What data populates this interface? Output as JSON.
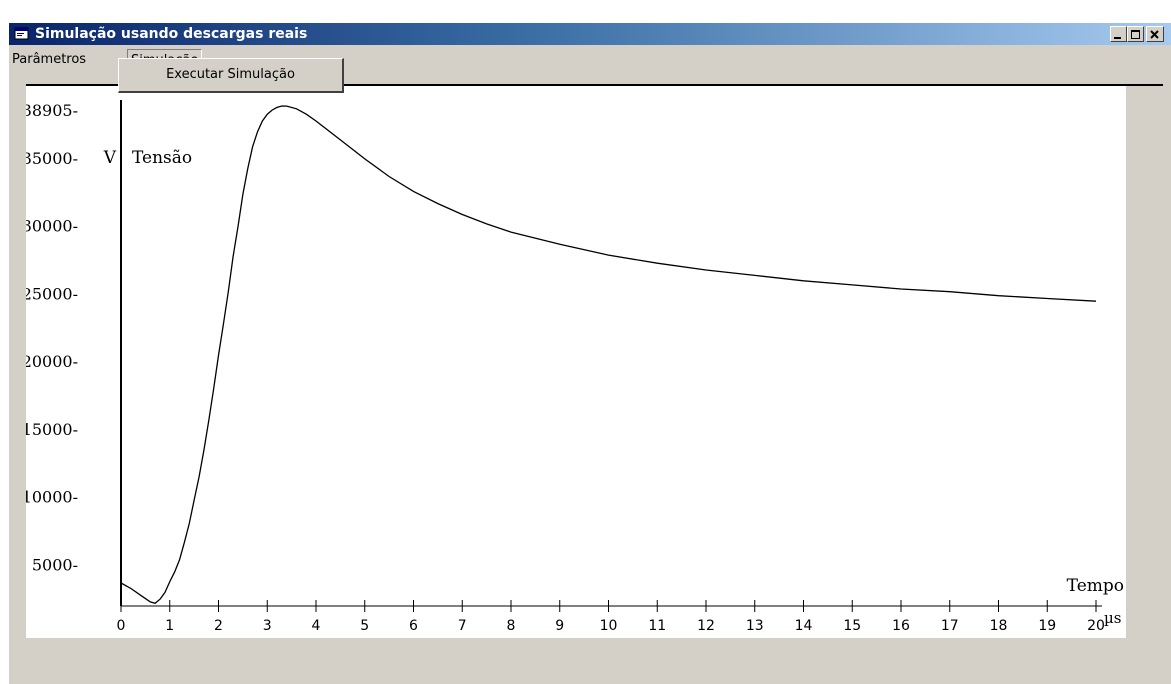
{
  "window": {
    "title": "Simulação usando descargas reais",
    "icon": "app-window-icon",
    "controls": [
      "minimize-icon",
      "maximize-icon",
      "close-icon"
    ]
  },
  "menu": {
    "items": [
      "Parâmetros",
      "Simulação"
    ],
    "open_menu": "Simulação",
    "open_menu_items": [
      "Executar Simulação"
    ]
  },
  "chart_data": {
    "type": "line",
    "ylabel": "Tensão",
    "y_unit": "V",
    "y_top_label": "38905-",
    "y_tick_labels": [
      "35000-",
      "30000-",
      "25000-",
      "20000-",
      "15000-",
      "10000-",
      "5000-"
    ],
    "y_tick_values": [
      35000,
      30000,
      25000,
      20000,
      15000,
      10000,
      5000
    ],
    "ylim": [
      2000,
      38905
    ],
    "xlabel": "Tempo",
    "x_unit": "µs",
    "x_ticks": [
      0,
      1,
      2,
      3,
      4,
      5,
      6,
      7,
      8,
      9,
      10,
      11,
      12,
      13,
      14,
      15,
      16,
      17,
      18,
      19,
      20
    ],
    "xlim": [
      0,
      20
    ],
    "series": [
      {
        "points": [
          [
            0,
            3700
          ],
          [
            0.2,
            3300
          ],
          [
            0.4,
            2800
          ],
          [
            0.6,
            2300
          ],
          [
            0.7,
            2200
          ],
          [
            0.8,
            2500
          ],
          [
            0.9,
            3000
          ],
          [
            1.0,
            3800
          ],
          [
            1.1,
            4500
          ],
          [
            1.2,
            5400
          ],
          [
            1.3,
            6700
          ],
          [
            1.4,
            8100
          ],
          [
            1.5,
            9800
          ],
          [
            1.6,
            11500
          ],
          [
            1.7,
            13500
          ],
          [
            1.8,
            15700
          ],
          [
            1.9,
            18000
          ],
          [
            2.0,
            20500
          ],
          [
            2.1,
            22800
          ],
          [
            2.2,
            25200
          ],
          [
            2.3,
            27800
          ],
          [
            2.4,
            30000
          ],
          [
            2.5,
            32400
          ],
          [
            2.6,
            34300
          ],
          [
            2.7,
            35900
          ],
          [
            2.8,
            37000
          ],
          [
            2.9,
            37800
          ],
          [
            3.0,
            38300
          ],
          [
            3.1,
            38600
          ],
          [
            3.2,
            38800
          ],
          [
            3.3,
            38905
          ],
          [
            3.4,
            38900
          ],
          [
            3.6,
            38700
          ],
          [
            3.8,
            38300
          ],
          [
            4.0,
            37800
          ],
          [
            4.5,
            36400
          ],
          [
            5.0,
            35000
          ],
          [
            5.5,
            33700
          ],
          [
            6.0,
            32600
          ],
          [
            6.5,
            31700
          ],
          [
            7.0,
            30900
          ],
          [
            7.5,
            30200
          ],
          [
            8.0,
            29600
          ],
          [
            9.0,
            28700
          ],
          [
            10.0,
            27900
          ],
          [
            11.0,
            27300
          ],
          [
            12.0,
            26800
          ],
          [
            13.0,
            26400
          ],
          [
            14.0,
            26000
          ],
          [
            15.0,
            25700
          ],
          [
            16.0,
            25400
          ],
          [
            17.0,
            25200
          ],
          [
            18.0,
            24900
          ],
          [
            19.0,
            24700
          ],
          [
            20.0,
            24500
          ]
        ]
      }
    ]
  }
}
